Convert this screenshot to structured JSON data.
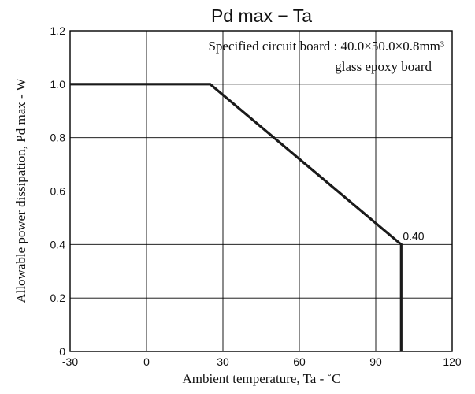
{
  "chart_data": {
    "type": "line",
    "title": "Pd max − Ta",
    "xlabel": "Ambient temperature, Ta  -  ˚C",
    "ylabel": "Allowable power dissipation, Pd max  -  W",
    "xlim": [
      -30,
      120
    ],
    "ylim": [
      0,
      1.2
    ],
    "x_ticks": [
      -30,
      0,
      30,
      60,
      90,
      120
    ],
    "y_ticks": [
      0,
      0.2,
      0.4,
      0.6,
      0.8,
      1.0,
      1.2
    ],
    "x_tick_labels": [
      "-30",
      "0",
      "30",
      "60",
      "90",
      "120"
    ],
    "y_tick_labels": [
      "0",
      "0.2",
      "0.4",
      "0.6",
      "0.8",
      "1.0",
      "1.2"
    ],
    "grid": true,
    "series": [
      {
        "x": [
          -30,
          25,
          100,
          100
        ],
        "y": [
          1.0,
          1.0,
          0.4,
          0
        ]
      }
    ],
    "annotations": [
      {
        "text": "0.40",
        "x": 100,
        "y": 0.4
      }
    ],
    "note": {
      "line1": "Specified circuit board : 40.0×50.0×0.8mm³",
      "line2": "glass epoxy board"
    }
  }
}
